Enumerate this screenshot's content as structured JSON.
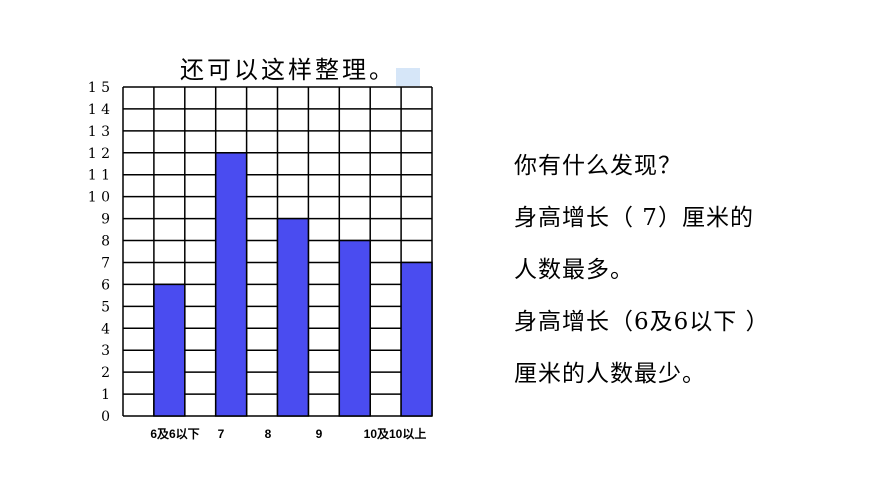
{
  "chart_data": {
    "type": "bar",
    "title": "还可以这样整理。",
    "categories": [
      "6及6以下",
      "7",
      "8",
      "9",
      "10及10以上"
    ],
    "values": [
      6,
      12,
      9,
      8,
      7
    ],
    "ylim": [
      0,
      15
    ],
    "yticks": [
      "0",
      "1",
      "2",
      "3",
      "4",
      "5",
      "6",
      "7",
      "8",
      "9",
      "1 0",
      "1 1",
      "1 2",
      "1 3",
      "1 4",
      "1 5"
    ],
    "grid": true,
    "bar_color": "#4a4cf0"
  },
  "findings": [
    "你有什么发现？",
    "身高增长（ 7）厘米的",
    "人数最多。",
    "身高增长（6及6以下 ）",
    "厘米的人数最少。"
  ]
}
